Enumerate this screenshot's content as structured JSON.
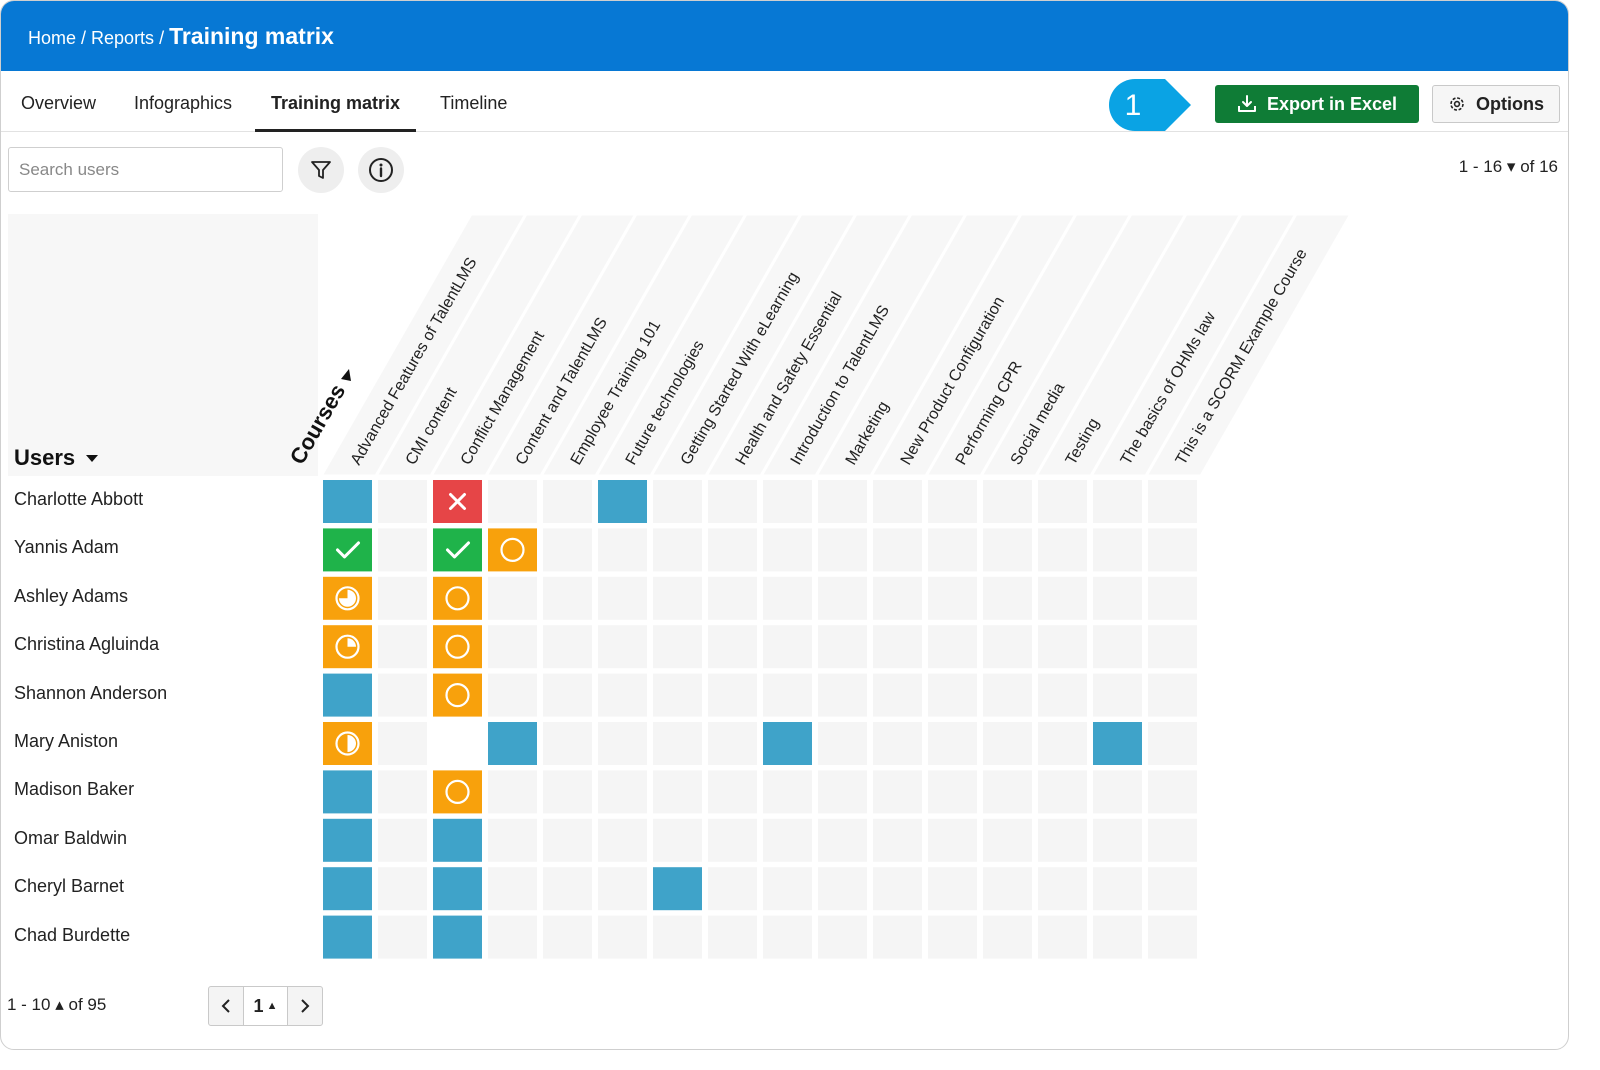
{
  "breadcrumb": {
    "home": "Home",
    "reports": "Reports",
    "current": "Training matrix"
  },
  "tabs": [
    {
      "label": "Overview",
      "active": false
    },
    {
      "label": "Infographics",
      "active": false
    },
    {
      "label": "Training matrix",
      "active": true
    },
    {
      "label": "Timeline",
      "active": false
    }
  ],
  "callout": {
    "number": "1",
    "color": "#0aa3e4"
  },
  "toolbar": {
    "export_label": "Export in Excel",
    "options_label": "Options"
  },
  "search": {
    "placeholder": "Search users",
    "value": ""
  },
  "icons": {
    "filter": "filter-icon",
    "info": "info-icon",
    "export": "download-icon",
    "options": "gear-icon"
  },
  "pager_top": {
    "range": "1 - 16",
    "of": "of 16"
  },
  "matrix": {
    "courses_label": "Courses",
    "users_label": "Users",
    "courses": [
      "Advanced Features of TalentLMS",
      "CMI content",
      "Conflict Management",
      "Content and TalentLMS",
      "Employee Training 101",
      "Future technologies",
      "Getting Started With eLearning",
      "Health and Safety Essential",
      "Introduction to TalentLMS",
      "Marketing",
      "New Product Configuration",
      "Performing CPR",
      "Social media",
      "Testing",
      "The basics of OHMs law",
      "This is a SCORM Example Course"
    ],
    "legend_colors": {
      "enrolled": "#3fa3c9",
      "completed": "#1fb34a",
      "failed": "#e64547",
      "in_progress": "#f8a10c",
      "empty": "#f5f5f5"
    },
    "users": [
      {
        "name": "Charlotte Abbott",
        "cells": [
          "enrolled",
          "empty",
          "failed",
          "empty",
          "empty",
          "enrolled",
          "empty",
          "empty",
          "empty",
          "empty",
          "empty",
          "empty",
          "empty",
          "empty",
          "empty",
          "empty"
        ]
      },
      {
        "name": "Yannis Adam",
        "cells": [
          "completed",
          "empty",
          "completed",
          "not_started",
          "empty",
          "empty",
          "empty",
          "empty",
          "empty",
          "empty",
          "empty",
          "empty",
          "empty",
          "empty",
          "empty",
          "empty"
        ]
      },
      {
        "name": "Ashley Adams",
        "cells": [
          "progress_75",
          "empty",
          "not_started",
          "empty",
          "empty",
          "empty",
          "empty",
          "empty",
          "empty",
          "empty",
          "empty",
          "empty",
          "empty",
          "empty",
          "empty",
          "empty"
        ]
      },
      {
        "name": "Christina Agluinda",
        "cells": [
          "progress_25",
          "empty",
          "not_started",
          "empty",
          "empty",
          "empty",
          "empty",
          "empty",
          "empty",
          "empty",
          "empty",
          "empty",
          "empty",
          "empty",
          "empty",
          "empty"
        ]
      },
      {
        "name": "Shannon Anderson",
        "cells": [
          "enrolled",
          "empty",
          "not_started",
          "empty",
          "empty",
          "empty",
          "empty",
          "empty",
          "empty",
          "empty",
          "empty",
          "empty",
          "empty",
          "empty",
          "empty",
          "empty"
        ]
      },
      {
        "name": "Mary Aniston",
        "cells": [
          "progress_50",
          "empty",
          "blank",
          "enrolled",
          "empty",
          "empty",
          "empty",
          "empty",
          "enrolled",
          "empty",
          "empty",
          "empty",
          "empty",
          "empty",
          "enrolled",
          "empty"
        ]
      },
      {
        "name": "Madison Baker",
        "cells": [
          "enrolled",
          "empty",
          "not_started",
          "empty",
          "empty",
          "empty",
          "empty",
          "empty",
          "empty",
          "empty",
          "empty",
          "empty",
          "empty",
          "empty",
          "empty",
          "empty"
        ]
      },
      {
        "name": "Omar Baldwin",
        "cells": [
          "enrolled",
          "empty",
          "enrolled",
          "empty",
          "empty",
          "empty",
          "empty",
          "empty",
          "empty",
          "empty",
          "empty",
          "empty",
          "empty",
          "empty",
          "empty",
          "empty"
        ]
      },
      {
        "name": "Cheryl Barnet",
        "cells": [
          "enrolled",
          "empty",
          "enrolled",
          "empty",
          "empty",
          "empty",
          "enrolled",
          "empty",
          "empty",
          "empty",
          "empty",
          "empty",
          "empty",
          "empty",
          "empty",
          "empty"
        ]
      },
      {
        "name": "Chad Burdette",
        "cells": [
          "enrolled",
          "empty",
          "enrolled",
          "empty",
          "empty",
          "empty",
          "empty",
          "empty",
          "empty",
          "empty",
          "empty",
          "empty",
          "empty",
          "empty",
          "empty",
          "empty"
        ]
      }
    ]
  },
  "footer": {
    "range": "1 - 10",
    "of": "of 95",
    "page": "1"
  }
}
